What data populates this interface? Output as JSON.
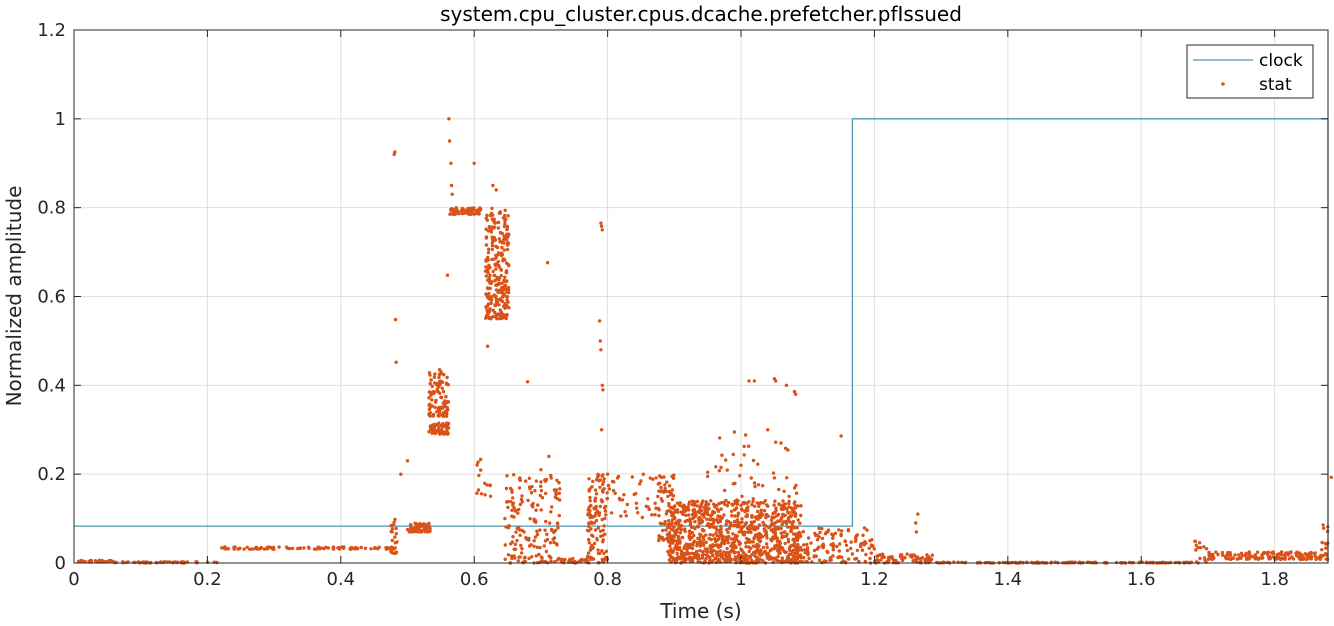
{
  "chart_data": {
    "type": "line",
    "title": "system.cpu_cluster.cpus.dcache.prefetcher.pfIssued",
    "xlabel": "Time (s)",
    "ylabel": "Normalized amplitude",
    "xlim": [
      0,
      1.88
    ],
    "ylim": [
      0,
      1.2
    ],
    "xticks": [
      0,
      0.2,
      0.4,
      0.6,
      0.8,
      1,
      1.2,
      1.4,
      1.6,
      1.8
    ],
    "xtick_labels": [
      "0",
      "0.2",
      "0.4",
      "0.6",
      "0.8",
      "1",
      "1.2",
      "1.4",
      "1.6",
      "1.8"
    ],
    "yticks": [
      0,
      0.2,
      0.4,
      0.6,
      0.8,
      1,
      1.2
    ],
    "ytick_labels": [
      "0",
      "0.2",
      "0.4",
      "0.6",
      "0.8",
      "1",
      "1.2"
    ],
    "grid": true,
    "legend_position": "top-right",
    "series": [
      {
        "name": "clock",
        "style": "step-line",
        "color": "#4a9ab4",
        "x": [
          0,
          1.167,
          1.167,
          1.88,
          1.88
        ],
        "y": [
          0.083,
          0.083,
          1,
          1,
          0
        ]
      },
      {
        "name": "stat",
        "style": "markers",
        "color": "#d95319",
        "clusters": [
          {
            "x": [
              0,
              0.06
            ],
            "y": [
              0.002,
              0.006
            ],
            "n": 30
          },
          {
            "x": [
              0.06,
              0.215
            ],
            "y": [
              0,
              0.003
            ],
            "n": 50
          },
          {
            "x": [
              0.215,
              0.475
            ],
            "y": [
              0.031,
              0.036
            ],
            "n": 90
          },
          {
            "x": [
              0.475,
              0.485
            ],
            "y": [
              0.02,
              0.1
            ],
            "n": 25
          },
          {
            "x": [
              0.5,
              0.535
            ],
            "y": [
              0.07,
              0.09
            ],
            "n": 60
          },
          {
            "x": [
              0.532,
              0.562
            ],
            "y": [
              0.29,
              0.315
            ],
            "n": 70
          },
          {
            "x": [
              0.532,
              0.562
            ],
            "y": [
              0.33,
              0.44
            ],
            "n": 90
          },
          {
            "x": [
              0.563,
              0.61
            ],
            "y": [
              0.785,
              0.8
            ],
            "n": 70
          },
          {
            "x": [
              0.617,
              0.652
            ],
            "y": [
              0.55,
              0.8
            ],
            "n": 260
          },
          {
            "x": [
              0.6,
              0.625
            ],
            "y": [
              0.15,
              0.25
            ],
            "n": 14
          },
          {
            "x": [
              0.645,
              0.73
            ],
            "y": [
              0,
              0.2
            ],
            "n": 170
          },
          {
            "x": [
              0.73,
              0.77
            ],
            "y": [
              0,
              0.01
            ],
            "n": 30
          },
          {
            "x": [
              0.77,
              0.8
            ],
            "y": [
              0,
              0.2
            ],
            "n": 120
          },
          {
            "x": [
              0.8,
              0.88
            ],
            "y": [
              0.1,
              0.2
            ],
            "n": 40
          },
          {
            "x": [
              0.875,
              0.9
            ],
            "y": [
              0.05,
              0.2
            ],
            "n": 70
          },
          {
            "x": [
              0.89,
              1.09
            ],
            "y": [
              0,
              0.14
            ],
            "n": 950
          },
          {
            "x": [
              0.95,
              1.09
            ],
            "y": [
              0.14,
              0.3
            ],
            "n": 40
          },
          {
            "x": [
              1.09,
              1.2
            ],
            "y": [
              0,
              0.08
            ],
            "n": 120
          },
          {
            "x": [
              1.2,
              1.29
            ],
            "y": [
              0,
              0.02
            ],
            "n": 80
          },
          {
            "x": [
              1.29,
              1.68
            ],
            "y": [
              0,
              0.002
            ],
            "n": 140
          },
          {
            "x": [
              1.68,
              1.7
            ],
            "y": [
              0,
              0.05
            ],
            "n": 15
          },
          {
            "x": [
              1.7,
              1.88
            ],
            "y": [
              0.008,
              0.025
            ],
            "n": 160
          },
          {
            "x": [
              1.87,
              1.88
            ],
            "y": [
              0.03,
              0.1
            ],
            "n": 10
          }
        ],
        "points": [
          [
            0.48,
            0.92
          ],
          [
            0.481,
            0.925
          ],
          [
            0.482,
            0.548
          ],
          [
            0.483,
            0.452
          ],
          [
            0.562,
            1.0
          ],
          [
            0.563,
            0.95
          ],
          [
            0.565,
            0.9
          ],
          [
            0.566,
            0.85
          ],
          [
            0.567,
            0.83
          ],
          [
            0.56,
            0.648
          ],
          [
            0.628,
            0.85
          ],
          [
            0.633,
            0.84
          ],
          [
            0.62,
            0.488
          ],
          [
            0.71,
            0.676
          ],
          [
            0.68,
            0.408
          ],
          [
            0.712,
            0.24
          ],
          [
            0.79,
            0.765
          ],
          [
            0.791,
            0.758
          ],
          [
            0.792,
            0.75
          ],
          [
            0.788,
            0.545
          ],
          [
            0.789,
            0.5
          ],
          [
            0.79,
            0.48
          ],
          [
            0.792,
            0.4
          ],
          [
            0.793,
            0.39
          ],
          [
            0.791,
            0.3
          ],
          [
            0.8,
            0.2
          ],
          [
            0.6,
            0.9
          ],
          [
            1.012,
            0.41
          ],
          [
            1.02,
            0.41
          ],
          [
            1.05,
            0.415
          ],
          [
            1.052,
            0.41
          ],
          [
            1.068,
            0.4
          ],
          [
            1.08,
            0.386
          ],
          [
            1.082,
            0.38
          ],
          [
            0.99,
            0.295
          ],
          [
            1.04,
            0.3
          ],
          [
            1.06,
            0.27
          ],
          [
            1.15,
            0.286
          ],
          [
            1.265,
            0.11
          ],
          [
            1.262,
            0.09
          ],
          [
            1.263,
            0.07
          ],
          [
            0.88,
            0.17
          ],
          [
            0.95,
            0.195
          ],
          [
            0.97,
            0.215
          ],
          [
            1.0,
            0.22
          ],
          [
            0.49,
            0.2
          ],
          [
            0.5,
            0.23
          ],
          [
            0.7,
            0.21
          ],
          [
            1.885,
            0.193
          ]
        ]
      }
    ]
  }
}
